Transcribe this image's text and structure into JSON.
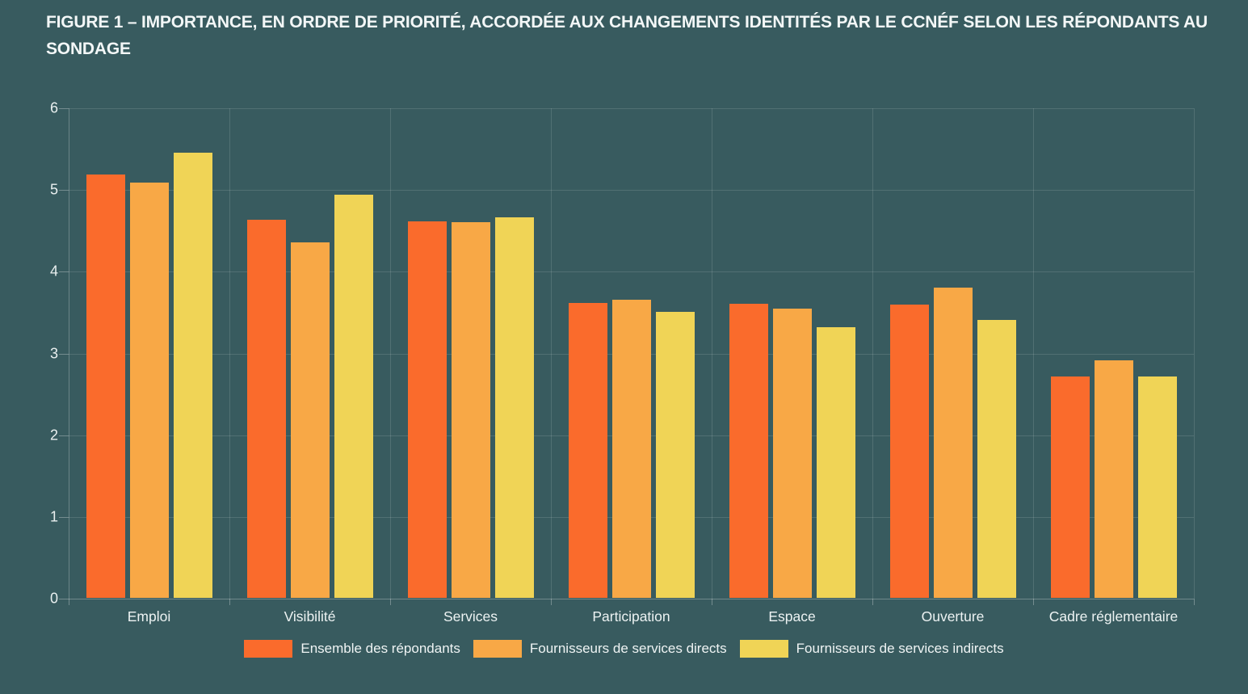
{
  "title": "FIGURE 1 – IMPORTANCE, EN ORDRE DE PRIORITÉ, ACCORDÉE AUX CHANGEMENTS IDENTITÉS PAR LE CCNÉF SELON LES RÉPONDANTS AU SONDAGE",
  "colors": {
    "background": "#385B5F",
    "title_text": "#F3F7F7",
    "axis_text": "#E9EFEF",
    "gridline": "#4D696D",
    "series": [
      "#FA6B2C",
      "#F8A846",
      "#F0D456"
    ]
  },
  "chart_data": {
    "type": "bar",
    "title": "FIGURE 1 – IMPORTANCE, EN ORDRE DE PRIORITÉ, ACCORDÉE AUX CHANGEMENTS IDENTITÉS PAR LE CCNÉF SELON LES RÉPONDANTS AU SONDAGE",
    "categories": [
      "Emploi",
      "Visibilité",
      "Services",
      "Participation",
      "Espace",
      "Ouverture",
      "Cadre réglementaire"
    ],
    "series": [
      {
        "name": "Ensemble des répondants",
        "color": "#FA6B2C",
        "values": [
          5.18,
          4.63,
          4.61,
          3.61,
          3.6,
          3.59,
          2.71
        ]
      },
      {
        "name": "Fournisseurs de services directs",
        "color": "#F8A846",
        "values": [
          5.08,
          4.35,
          4.6,
          3.65,
          3.54,
          3.8,
          2.91
        ]
      },
      {
        "name": "Fournisseurs de services indirects",
        "color": "#F0D456",
        "values": [
          5.45,
          4.93,
          4.66,
          3.5,
          3.31,
          3.4,
          2.71
        ]
      }
    ],
    "xlabel": "",
    "ylabel": "",
    "ylim": [
      0,
      6
    ],
    "yticks": [
      "0",
      "1",
      "2",
      "3",
      "4",
      "5",
      "6"
    ],
    "grid": true,
    "legend_position": "bottom"
  }
}
